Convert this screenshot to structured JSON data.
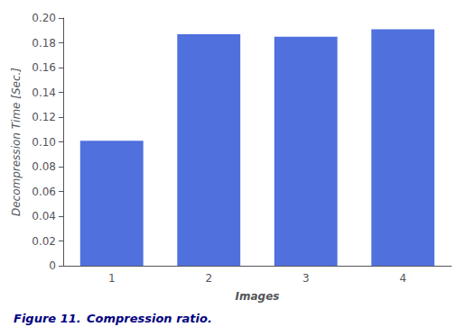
{
  "chart_data": {
    "type": "bar",
    "categories": [
      "1",
      "2",
      "3",
      "4"
    ],
    "values": [
      0.101,
      0.187,
      0.185,
      0.191
    ],
    "xlabel": "Images",
    "ylabel": "Decompression Time [Sec.]",
    "ylim": [
      0,
      0.2
    ],
    "yticks": [
      0,
      0.02,
      0.04,
      0.06,
      0.08,
      {
        "value": 0.1,
        "label": "0.10"
      },
      0.12,
      0.14,
      0.16,
      0.18,
      {
        "value": 0.2,
        "label": "0.20"
      }
    ],
    "annotations": [
      "Figure 11.",
      "Compression ratio."
    ],
    "grid": false
  }
}
